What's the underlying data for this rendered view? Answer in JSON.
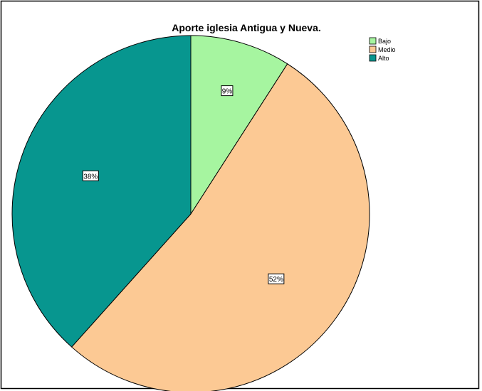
{
  "chart_data": {
    "type": "pie",
    "title": "Aporte iglesia Antigua y Nueva.",
    "slices": [
      {
        "label": "Bajo",
        "value": 9,
        "value_label": "9%",
        "color": "#A6F5A0"
      },
      {
        "label": "Medio",
        "value": 52,
        "value_label": "52%",
        "color": "#FCC994"
      },
      {
        "label": "Alto",
        "value": 38,
        "value_label": "38%",
        "color": "#07968F"
      }
    ],
    "start_angle": "12 o'clock",
    "direction": "clockwise",
    "legend": {
      "placement": "top-right",
      "entries": [
        "Bajo",
        "Medio",
        "Alto"
      ]
    },
    "data_labels": true,
    "border_color": "#000000"
  }
}
